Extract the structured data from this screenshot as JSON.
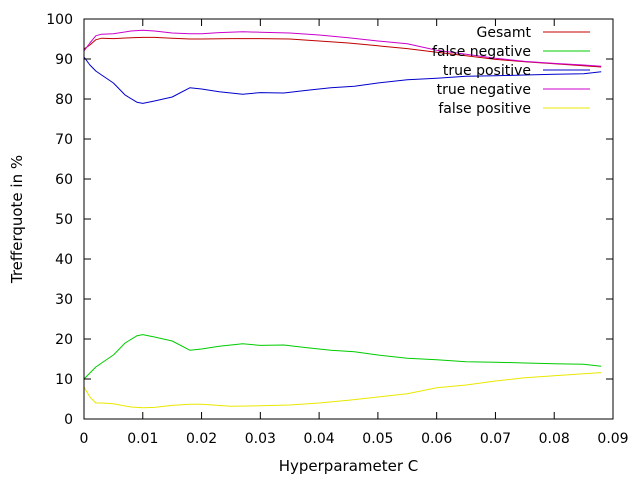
{
  "chart_data": {
    "type": "line",
    "title": "",
    "xlabel": "Hyperparameter C",
    "ylabel": "Trefferquote in %",
    "xlim": [
      0,
      0.09
    ],
    "ylim": [
      0,
      100
    ],
    "xticks": [
      0,
      0.01,
      0.02,
      0.03,
      0.04,
      0.05,
      0.06,
      0.07,
      0.08,
      0.09
    ],
    "xtick_labels": [
      "0",
      "0.01",
      "0.02",
      "0.03",
      "0.04",
      "0.05",
      "0.06",
      "0.07",
      "0.08",
      "0.09"
    ],
    "yticks": [
      0,
      10,
      20,
      30,
      40,
      50,
      60,
      70,
      80,
      90,
      100
    ],
    "ytick_labels": [
      "0",
      "10",
      "20",
      "30",
      "40",
      "50",
      "60",
      "70",
      "80",
      "90",
      "100"
    ],
    "grid": false,
    "legend_position": "top-right",
    "series": [
      {
        "name": "Gesamt",
        "color": "#c00000",
        "x": [
          0,
          0.001,
          0.002,
          0.003,
          0.005,
          0.008,
          0.01,
          0.012,
          0.015,
          0.018,
          0.02,
          0.025,
          0.03,
          0.035,
          0.04,
          0.045,
          0.05,
          0.055,
          0.06,
          0.065,
          0.07,
          0.075,
          0.08,
          0.085,
          0.088
        ],
        "y": [
          92.5,
          93.5,
          94.8,
          95.2,
          95.1,
          95.3,
          95.4,
          95.4,
          95.2,
          95.0,
          95.0,
          95.1,
          95.1,
          95.0,
          94.5,
          94.0,
          93.3,
          92.6,
          91.7,
          90.8,
          89.9,
          89.3,
          88.8,
          88.3,
          88.0
        ]
      },
      {
        "name": "false negative",
        "color": "#00cc00",
        "x": [
          0,
          0.001,
          0.002,
          0.003,
          0.005,
          0.007,
          0.009,
          0.01,
          0.012,
          0.015,
          0.018,
          0.02,
          0.023,
          0.027,
          0.03,
          0.034,
          0.038,
          0.042,
          0.046,
          0.05,
          0.055,
          0.06,
          0.065,
          0.07,
          0.075,
          0.08,
          0.085,
          0.088
        ],
        "y": [
          10,
          11.5,
          13.0,
          14.0,
          16.0,
          19.0,
          20.8,
          21.1,
          20.5,
          19.5,
          17.2,
          17.5,
          18.2,
          18.8,
          18.4,
          18.5,
          17.8,
          17.2,
          16.8,
          16.0,
          15.2,
          14.8,
          14.3,
          14.2,
          14.0,
          13.8,
          13.7,
          13.2
        ]
      },
      {
        "name": "true positive",
        "color": "#0000cc",
        "x": [
          0,
          0.001,
          0.002,
          0.003,
          0.005,
          0.007,
          0.009,
          0.01,
          0.012,
          0.015,
          0.018,
          0.02,
          0.023,
          0.027,
          0.03,
          0.034,
          0.038,
          0.042,
          0.046,
          0.05,
          0.055,
          0.06,
          0.065,
          0.07,
          0.075,
          0.08,
          0.085,
          0.088
        ],
        "y": [
          90.5,
          88.5,
          87.0,
          86.0,
          84.0,
          81.0,
          79.2,
          78.9,
          79.5,
          80.5,
          82.8,
          82.5,
          81.8,
          81.2,
          81.6,
          81.5,
          82.2,
          82.8,
          83.2,
          84.0,
          84.8,
          85.2,
          85.7,
          85.8,
          86.0,
          86.2,
          86.3,
          86.8
        ]
      },
      {
        "name": "true negative",
        "color": "#cc00cc",
        "x": [
          0,
          0.001,
          0.002,
          0.003,
          0.005,
          0.008,
          0.01,
          0.012,
          0.015,
          0.018,
          0.02,
          0.023,
          0.027,
          0.03,
          0.035,
          0.04,
          0.045,
          0.05,
          0.055,
          0.06,
          0.065,
          0.07,
          0.075,
          0.08,
          0.085,
          0.088
        ],
        "y": [
          92,
          94.0,
          95.8,
          96.2,
          96.3,
          97.0,
          97.2,
          97.0,
          96.5,
          96.3,
          96.3,
          96.6,
          96.8,
          96.7,
          96.5,
          96.0,
          95.3,
          94.5,
          93.8,
          92.2,
          91.2,
          90.2,
          89.4,
          88.9,
          88.5,
          88.2
        ]
      },
      {
        "name": "false positive",
        "color": "#e8e800",
        "x": [
          0,
          0.001,
          0.002,
          0.003,
          0.005,
          0.008,
          0.01,
          0.012,
          0.015,
          0.018,
          0.02,
          0.025,
          0.03,
          0.035,
          0.04,
          0.045,
          0.05,
          0.055,
          0.06,
          0.065,
          0.07,
          0.075,
          0.08,
          0.085,
          0.088
        ],
        "y": [
          8,
          5.5,
          4.0,
          4.0,
          3.8,
          3.0,
          2.8,
          2.9,
          3.4,
          3.7,
          3.7,
          3.2,
          3.3,
          3.5,
          4.0,
          4.7,
          5.5,
          6.3,
          7.8,
          8.5,
          9.5,
          10.3,
          10.8,
          11.3,
          11.6
        ]
      }
    ]
  }
}
